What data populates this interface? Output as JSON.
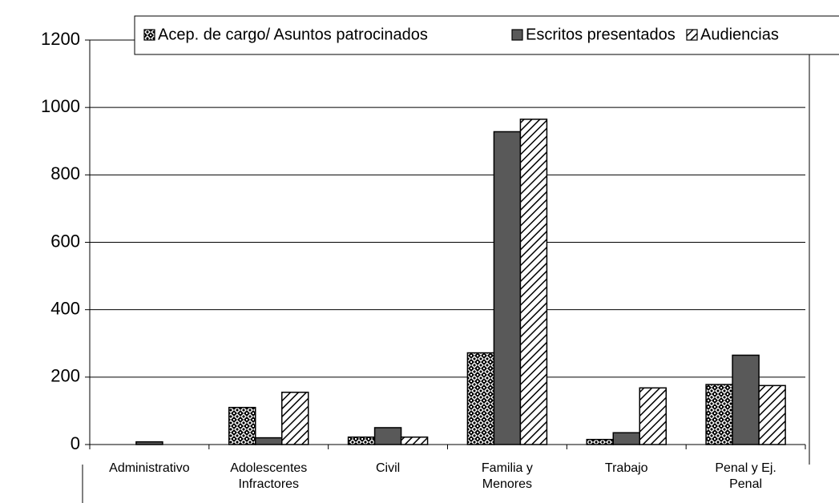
{
  "chart_data": {
    "type": "bar",
    "categories": [
      "Administrativo",
      "Adolescentes Infractores",
      "Civil",
      "Familia y Menores",
      "Trabajo",
      "Penal y Ej. Penal"
    ],
    "series": [
      {
        "name": "Acep. de cargo/ Asuntos patrocinados",
        "color": "#000000",
        "values": [
          0,
          110,
          22,
          272,
          15,
          178
        ]
      },
      {
        "name": "Escritos presentados",
        "color": "#595959",
        "values": [
          8,
          20,
          50,
          928,
          35,
          265
        ]
      },
      {
        "name": "Audiencias",
        "color": "#000000",
        "values": [
          0,
          155,
          22,
          965,
          168,
          175
        ]
      }
    ],
    "ylim": [
      0,
      1200
    ],
    "yticks": [
      0,
      200,
      400,
      600,
      800,
      1000,
      1200
    ],
    "grid": true,
    "legend": "top"
  }
}
